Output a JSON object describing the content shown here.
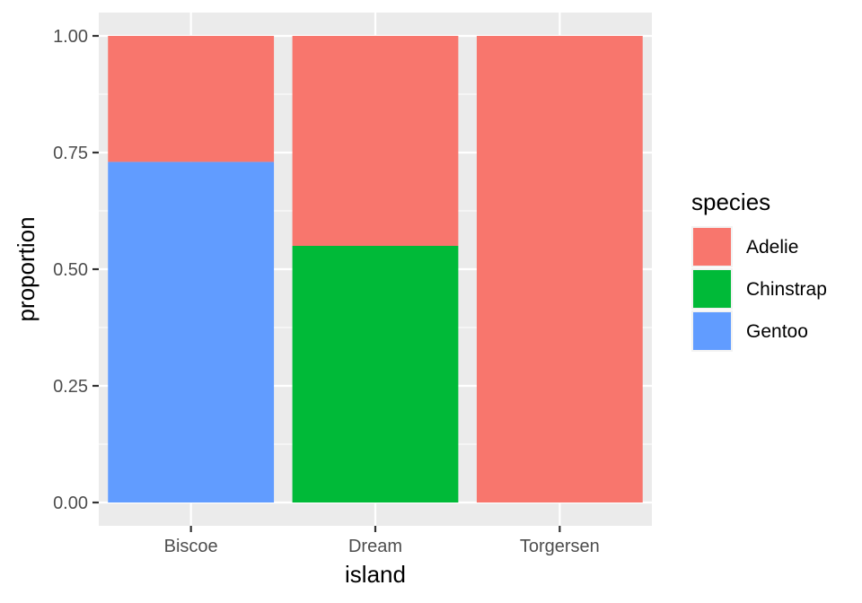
{
  "chart_data": {
    "type": "bar",
    "stacked": "fill",
    "categories": [
      "Biscoe",
      "Dream",
      "Torgersen"
    ],
    "series": [
      {
        "name": "Adelie",
        "values": [
          0.27,
          0.45,
          1.0
        ],
        "color": "#F8766D"
      },
      {
        "name": "Chinstrap",
        "values": [
          0.0,
          0.55,
          0.0
        ],
        "color": "#00BA38"
      },
      {
        "name": "Gentoo",
        "values": [
          0.73,
          0.0,
          0.0
        ],
        "color": "#619CFF"
      }
    ],
    "xlabel": "island",
    "ylabel": "proportion",
    "ylim": [
      -0.05,
      1.05
    ],
    "yticks": [
      "0.00",
      "0.25",
      "0.50",
      "0.75",
      "1.00"
    ],
    "ytick_values": [
      0,
      0.25,
      0.5,
      0.75,
      1.0
    ],
    "grid": true,
    "legend": {
      "title": "species",
      "position": "right"
    },
    "colors": {
      "panel": "#EBEBEB",
      "grid": "#FFFFFF"
    }
  }
}
